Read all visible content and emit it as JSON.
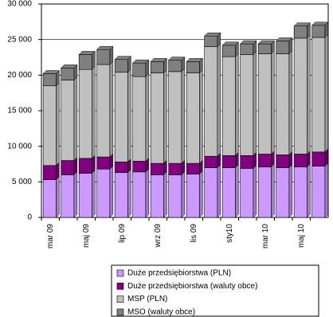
{
  "chart_data": {
    "type": "stacked-bar",
    "categories": [
      "mar 09",
      null,
      "maj 09",
      null,
      "lip 09",
      null,
      "wrz 09",
      null,
      "lis 09",
      null,
      "sty10",
      null,
      "mar 10",
      null,
      "maj 10",
      null
    ],
    "series": [
      {
        "name": "Duże przedsiębiorstwa (PLN)",
        "color": "#cc99ff",
        "values": [
          5300,
          6000,
          6200,
          6800,
          6300,
          6400,
          6000,
          6000,
          6100,
          7000,
          7000,
          6900,
          7100,
          7000,
          7100,
          7200
        ]
      },
      {
        "name": "Duże przedsiębiorstwa (waluty obce)",
        "color": "#800080",
        "values": [
          2000,
          2000,
          2100,
          1700,
          1500,
          1500,
          1600,
          1600,
          1500,
          1600,
          1700,
          1800,
          1800,
          1800,
          1800,
          2000
        ]
      },
      {
        "name": "MSP (PLN)",
        "color": "#c0c0c0",
        "values": [
          11200,
          11300,
          12500,
          13000,
          12600,
          11900,
          12700,
          12900,
          12700,
          15400,
          13900,
          14200,
          14100,
          14200,
          16300,
          16100
        ]
      },
      {
        "name": "MSO (waluty obce)",
        "color": "#808080",
        "values": [
          1700,
          1700,
          2100,
          2100,
          1800,
          1900,
          1600,
          1600,
          1600,
          1500,
          1600,
          1500,
          1400,
          1800,
          1700,
          1700
        ]
      }
    ],
    "ylim": [
      0,
      30000
    ],
    "yticks": [
      0,
      {
        "value": 5000,
        "label": "5 000"
      },
      {
        "value": 10000,
        "label": "10 000"
      },
      {
        "value": 15000,
        "label": "15 000"
      },
      {
        "value": 20000,
        "label": "20 000"
      },
      {
        "value": 25000,
        "label": "25 000"
      },
      {
        "value": 30000,
        "label": "30 000"
      }
    ],
    "grid": true,
    "legend": "bottom"
  }
}
